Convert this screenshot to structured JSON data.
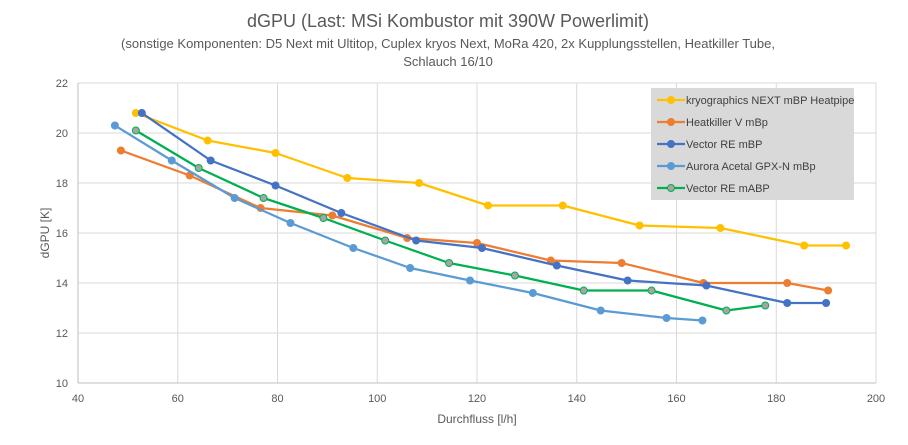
{
  "chart_data": {
    "type": "line",
    "title": "dGPU (Last: MSi Kombustor mit 390W Powerlimit)",
    "subtitle_lines": [
      "(sonstige Komponenten:  D5 Next mit Ultitop, Cuplex kryos Next, MoRa 420,  2x Kupplungsstellen, Heatkiller Tube,",
      "Schlauch 16/10"
    ],
    "xlabel": "Durchfluss [l/h]",
    "ylabel": "dGPU [K]",
    "xlim": [
      40,
      200
    ],
    "ylim": [
      10,
      22
    ],
    "xticks": [
      40,
      60,
      80,
      100,
      120,
      140,
      160,
      180,
      200
    ],
    "yticks": [
      10,
      12,
      14,
      16,
      18,
      20,
      22
    ],
    "grid": true,
    "legend_position": "top-right",
    "series": [
      {
        "name": "kryographics NEXT mBP Heatpipe",
        "color": "#FFC000",
        "marker_fill": "#FFC000",
        "x": [
          51.6,
          66,
          79.6,
          94,
          108.4,
          122.2,
          137.2,
          152.6,
          168.8,
          185.6,
          194
        ],
        "y": [
          20.8,
          19.7,
          19.2,
          18.2,
          18.0,
          17.1,
          17.1,
          16.3,
          16.2,
          15.5,
          15.5
        ]
      },
      {
        "name": "Heatkiller V mBp",
        "color": "#ED7D31",
        "marker_fill": "#ED7D31",
        "x": [
          48.6,
          62.4,
          76.6,
          91,
          106,
          120,
          134.8,
          149,
          165.4,
          182.2,
          190.4
        ],
        "y": [
          19.3,
          18.3,
          17.0,
          16.7,
          15.8,
          15.6,
          14.9,
          14.8,
          14.0,
          14.0,
          13.7
        ]
      },
      {
        "name": "Vector RE mBP",
        "color": "#4472C4",
        "marker_fill": "#4472C4",
        "x": [
          52.8,
          66.6,
          79.6,
          92.8,
          107.8,
          121,
          136,
          150.2,
          166,
          182.2,
          190
        ],
        "y": [
          20.8,
          18.9,
          17.9,
          16.8,
          15.7,
          15.4,
          14.7,
          14.1,
          13.9,
          13.2,
          13.2
        ]
      },
      {
        "name": "Aurora Acetal GPX-N mBp",
        "color": "#5B9BD5",
        "marker_fill": "#5B9BD5",
        "x": [
          47.4,
          58.8,
          71.4,
          82.6,
          95.2,
          106.6,
          118.6,
          131.2,
          144.8,
          158,
          165.2
        ],
        "y": [
          20.3,
          18.9,
          17.4,
          16.4,
          15.4,
          14.6,
          14.1,
          13.6,
          12.9,
          12.6,
          12.5
        ]
      },
      {
        "name": "Vector RE mABP",
        "color": "#00B050",
        "marker_fill": "#A5A5A5",
        "x": [
          51.6,
          64.2,
          77.2,
          89.2,
          101.6,
          114.4,
          127.6,
          141.4,
          155,
          170,
          177.8
        ],
        "y": [
          20.1,
          18.6,
          17.4,
          16.6,
          15.7,
          14.8,
          14.3,
          13.7,
          13.7,
          12.9,
          13.1
        ]
      }
    ]
  }
}
